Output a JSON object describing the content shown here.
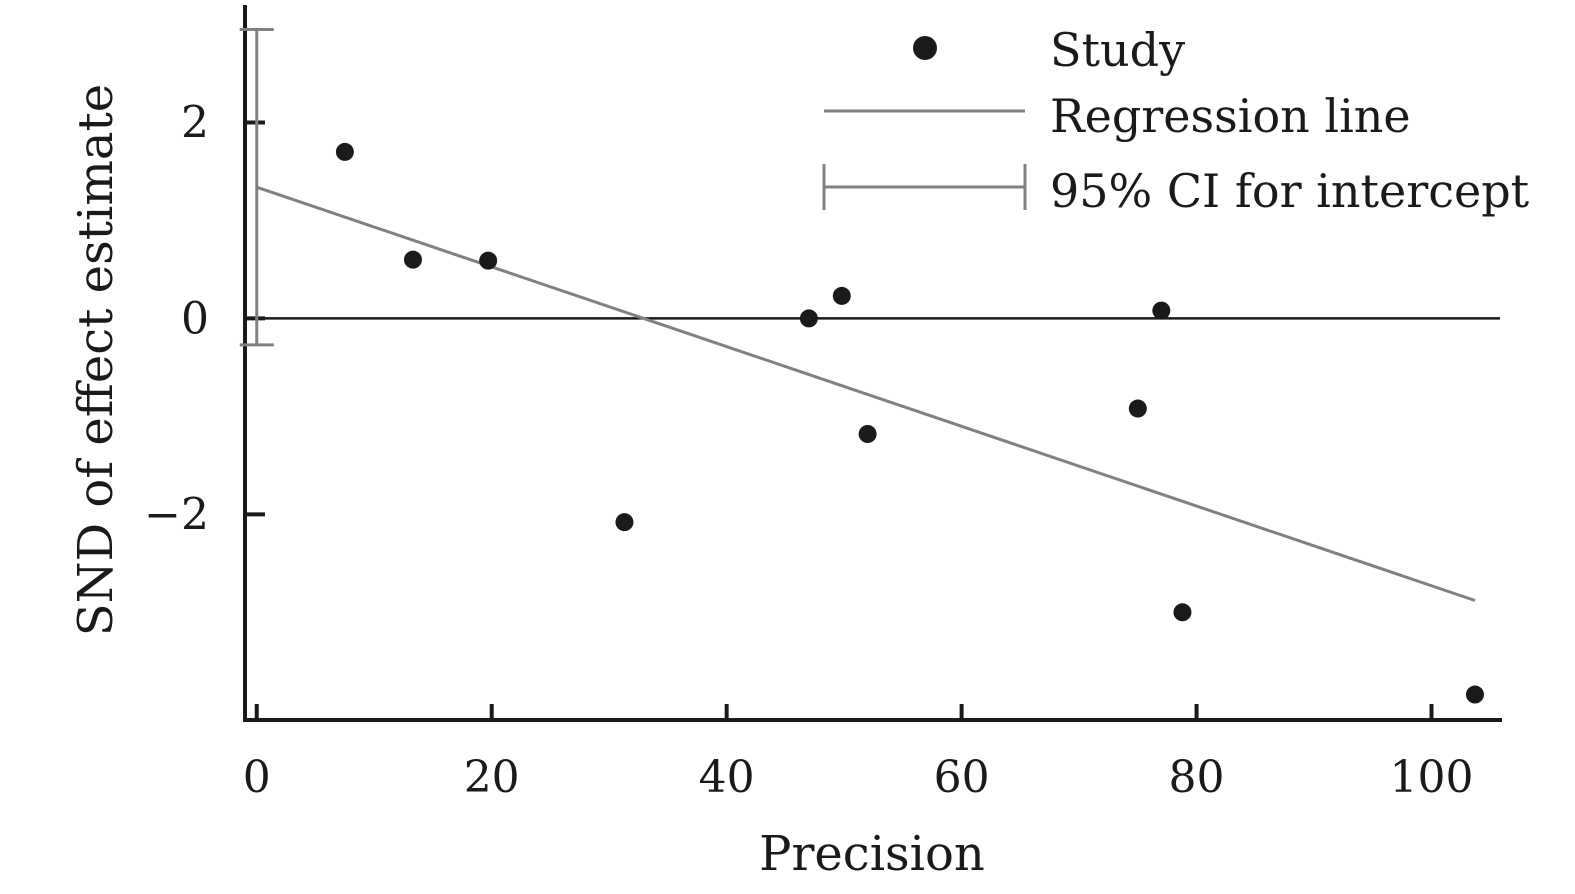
{
  "chart_data": {
    "type": "scatter",
    "title": "",
    "xlabel": "Precision",
    "ylabel": "SND of effect estimate",
    "xlim": [
      -1,
      106
    ],
    "ylim": [
      -4.1,
      3.2
    ],
    "xticks": [
      0,
      20,
      40,
      60,
      80,
      100
    ],
    "yticks": [
      -2,
      0,
      2
    ],
    "xtick_labels": [
      "0",
      "20",
      "40",
      "60",
      "80",
      "100"
    ],
    "ytick_labels": [
      "−2",
      "0",
      "2"
    ],
    "grid": false,
    "legend_position": "top-right",
    "series": [
      {
        "name": "Study",
        "kind": "points",
        "x": [
          7.5,
          13.3,
          19.7,
          31.3,
          47.0,
          49.8,
          52.0,
          75.0,
          77.0,
          78.8,
          103.7
        ],
        "y": [
          1.7,
          0.6,
          0.59,
          -2.08,
          0.0,
          0.23,
          -1.18,
          -0.92,
          0.08,
          -3.0,
          -3.84
        ],
        "color": "#1a1a1a"
      },
      {
        "name": "Regression line",
        "kind": "line",
        "x": [
          0,
          103.7
        ],
        "y": [
          1.34,
          -2.88
        ],
        "color": "#808080"
      },
      {
        "name": "95% CI for intercept",
        "kind": "errorbar",
        "x": 0,
        "low": -0.27,
        "high": 2.95,
        "color": "#808080"
      }
    ],
    "reference_line": {
      "y": 0,
      "color": "#1a1a1a"
    }
  }
}
